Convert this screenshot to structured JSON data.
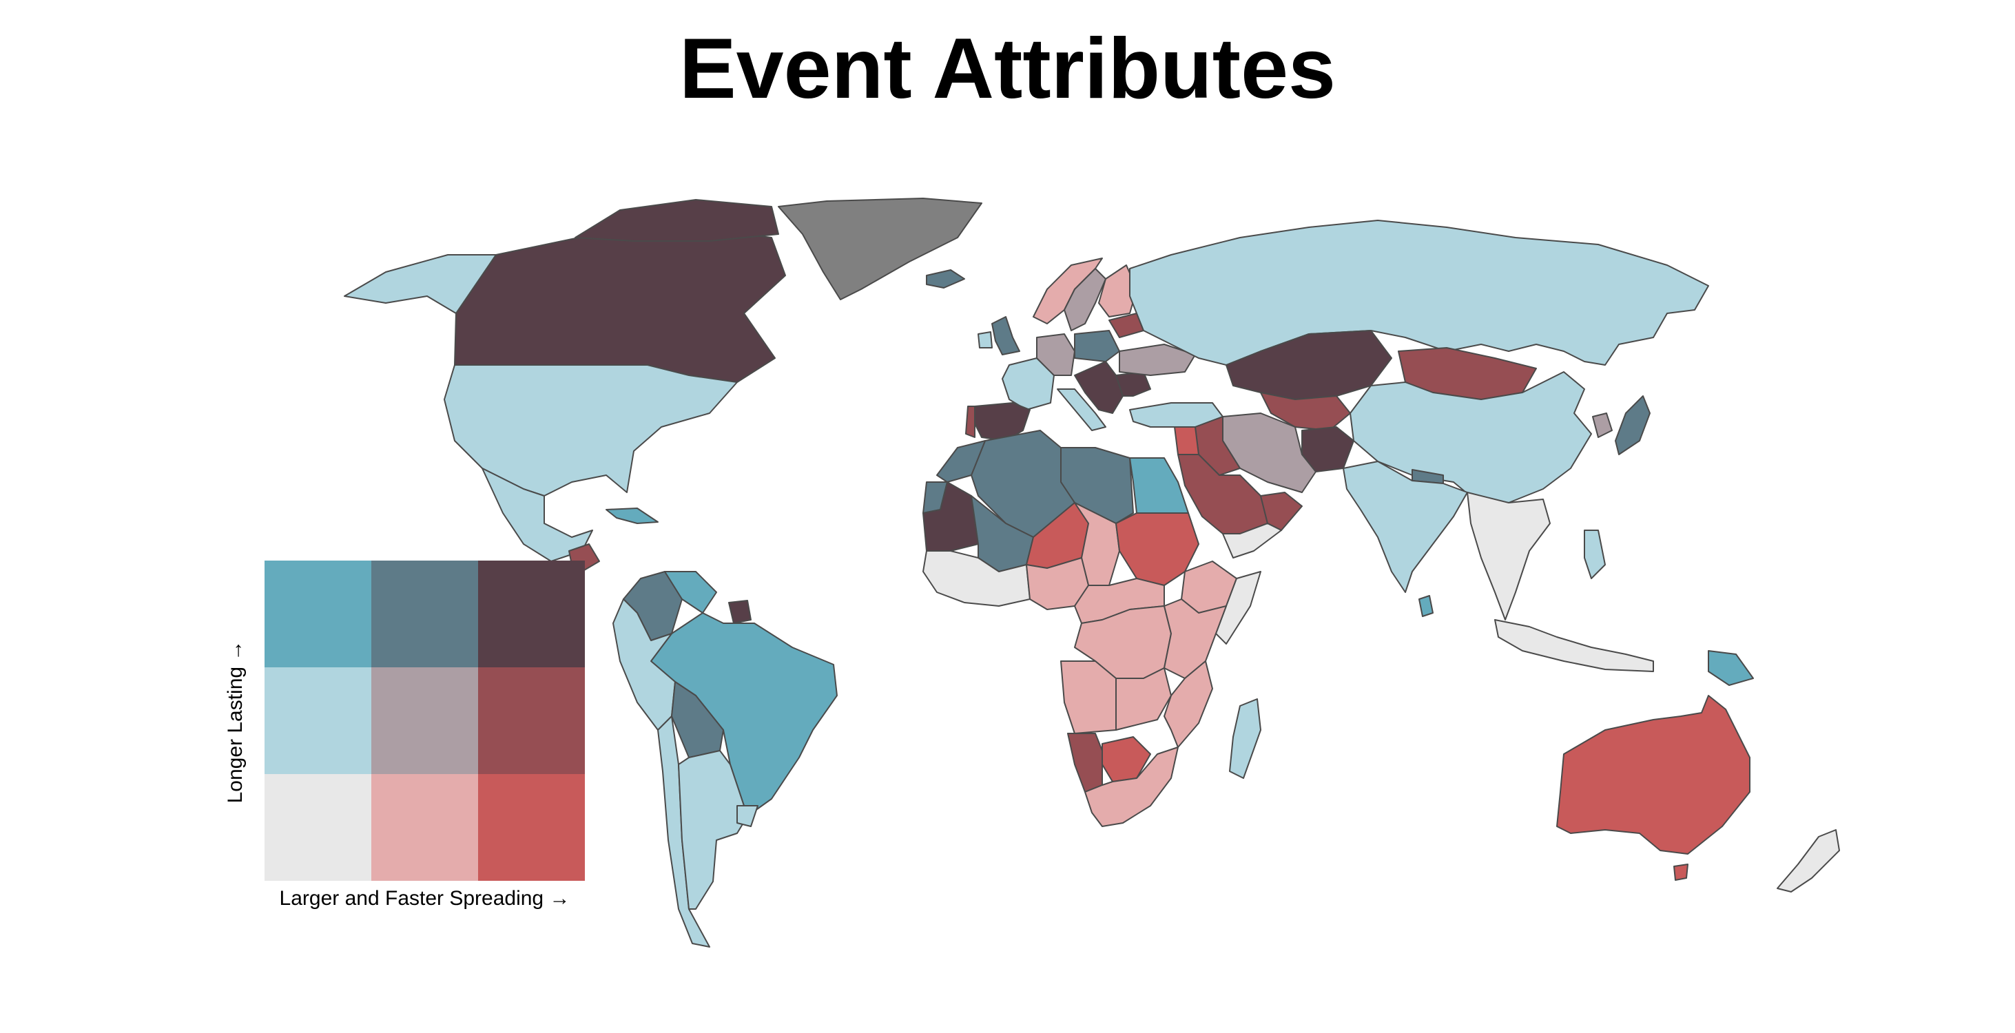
{
  "title": "Event Attributes",
  "legend": {
    "x_label": "Larger and Faster Spreading →",
    "y_label": "Longer Lasting →",
    "grid": [
      [
        "#64abbd",
        "#5e7b88",
        "#573f48"
      ],
      [
        "#b0d5df",
        "#ac9ea4",
        "#964e53"
      ],
      [
        "#e8e8e8",
        "#e4acac",
        "#c85a5a"
      ]
    ]
  },
  "no_data_color": "#808080",
  "countries": [
    {
      "name": "Canada",
      "fill": "#573f48"
    },
    {
      "name": "Greenland",
      "fill": "#808080"
    },
    {
      "name": "Alaska",
      "fill": "#b0d5df"
    },
    {
      "name": "United States",
      "fill": "#b0d5df"
    },
    {
      "name": "Mexico",
      "fill": "#b0d5df"
    },
    {
      "name": "Guatemala",
      "fill": "#964e53"
    },
    {
      "name": "Cuba",
      "fill": "#64abbd"
    },
    {
      "name": "Colombia",
      "fill": "#5e7b88"
    },
    {
      "name": "Venezuela",
      "fill": "#64abbd"
    },
    {
      "name": "Suriname",
      "fill": "#573f48"
    },
    {
      "name": "Brazil",
      "fill": "#64abbd"
    },
    {
      "name": "Peru",
      "fill": "#b0d5df"
    },
    {
      "name": "Bolivia",
      "fill": "#5e7b88"
    },
    {
      "name": "Chile",
      "fill": "#b0d5df"
    },
    {
      "name": "Argentina",
      "fill": "#b0d5df"
    },
    {
      "name": "Uruguay",
      "fill": "#b0d5df"
    },
    {
      "name": "Iceland",
      "fill": "#5e7b88"
    },
    {
      "name": "Norway",
      "fill": "#e4acac"
    },
    {
      "name": "Sweden",
      "fill": "#ac9ea4"
    },
    {
      "name": "Finland",
      "fill": "#e4acac"
    },
    {
      "name": "United Kingdom",
      "fill": "#5e7b88"
    },
    {
      "name": "Ireland",
      "fill": "#b0d5df"
    },
    {
      "name": "France",
      "fill": "#b0d5df"
    },
    {
      "name": "Spain",
      "fill": "#573f48"
    },
    {
      "name": "Portugal",
      "fill": "#964e53"
    },
    {
      "name": "Germany",
      "fill": "#ac9ea4"
    },
    {
      "name": "Poland",
      "fill": "#5e7b88"
    },
    {
      "name": "Italy",
      "fill": "#b0d5df"
    },
    {
      "name": "Balkans",
      "fill": "#573f48"
    },
    {
      "name": "Romania",
      "fill": "#573f48"
    },
    {
      "name": "Ukraine",
      "fill": "#ac9ea4"
    },
    {
      "name": "Belarus",
      "fill": "#964e53"
    },
    {
      "name": "Turkey",
      "fill": "#b0d5df"
    },
    {
      "name": "Russia",
      "fill": "#b0d5df"
    },
    {
      "name": "Kazakhstan",
      "fill": "#573f48"
    },
    {
      "name": "Central Asia",
      "fill": "#964e53"
    },
    {
      "name": "Afghanistan",
      "fill": "#573f48"
    },
    {
      "name": "Mongolia",
      "fill": "#964e53"
    },
    {
      "name": "China",
      "fill": "#b0d5df"
    },
    {
      "name": "Japan",
      "fill": "#5e7b88"
    },
    {
      "name": "North Korea",
      "fill": "#ac9ea4"
    },
    {
      "name": "India",
      "fill": "#b0d5df"
    },
    {
      "name": "Nepal",
      "fill": "#5e7b88"
    },
    {
      "name": "Southeast Asia",
      "fill": "#e8e8e8"
    },
    {
      "name": "Philippines",
      "fill": "#b0d5df"
    },
    {
      "name": "Indonesia",
      "fill": "#e8e8e8"
    },
    {
      "name": "Papua New Guinea",
      "fill": "#64abbd"
    },
    {
      "name": "Sri Lanka",
      "fill": "#64abbd"
    },
    {
      "name": "Iran",
      "fill": "#ac9ea4"
    },
    {
      "name": "Iraq",
      "fill": "#964e53"
    },
    {
      "name": "Syria",
      "fill": "#c85a5a"
    },
    {
      "name": "Saudi Arabia",
      "fill": "#964e53"
    },
    {
      "name": "Oman",
      "fill": "#964e53"
    },
    {
      "name": "Yemen",
      "fill": "#e8e8e8"
    },
    {
      "name": "Egypt",
      "fill": "#64abbd"
    },
    {
      "name": "Libya",
      "fill": "#5e7b88"
    },
    {
      "name": "Algeria",
      "fill": "#5e7b88"
    },
    {
      "name": "Morocco",
      "fill": "#5e7b88"
    },
    {
      "name": "Western Sahara",
      "fill": "#5e7b88"
    },
    {
      "name": "Mauritania",
      "fill": "#573f48"
    },
    {
      "name": "Mali",
      "fill": "#5e7b88"
    },
    {
      "name": "Niger",
      "fill": "#c85a5a"
    },
    {
      "name": "Chad",
      "fill": "#e4acac"
    },
    {
      "name": "Sudan",
      "fill": "#c85a5a"
    },
    {
      "name": "Ethiopia",
      "fill": "#e4acac"
    },
    {
      "name": "Somalia",
      "fill": "#e8e8e8"
    },
    {
      "name": "West Africa",
      "fill": "#e8e8e8"
    },
    {
      "name": "Nigeria",
      "fill": "#e4acac"
    },
    {
      "name": "Central Africa",
      "fill": "#e4acac"
    },
    {
      "name": "DR Congo",
      "fill": "#e4acac"
    },
    {
      "name": "East Africa",
      "fill": "#e4acac"
    },
    {
      "name": "Angola",
      "fill": "#e4acac"
    },
    {
      "name": "Zambia",
      "fill": "#e4acac"
    },
    {
      "name": "Mozambique",
      "fill": "#e4acac"
    },
    {
      "name": "Namibia",
      "fill": "#964e53"
    },
    {
      "name": "Botswana",
      "fill": "#c85a5a"
    },
    {
      "name": "South Africa",
      "fill": "#e4acac"
    },
    {
      "name": "Madagascar",
      "fill": "#b0d5df"
    },
    {
      "name": "Australia",
      "fill": "#c85a5a"
    },
    {
      "name": "Tasmania",
      "fill": "#c85a5a"
    },
    {
      "name": "New Zealand",
      "fill": "#e8e8e8"
    }
  ]
}
